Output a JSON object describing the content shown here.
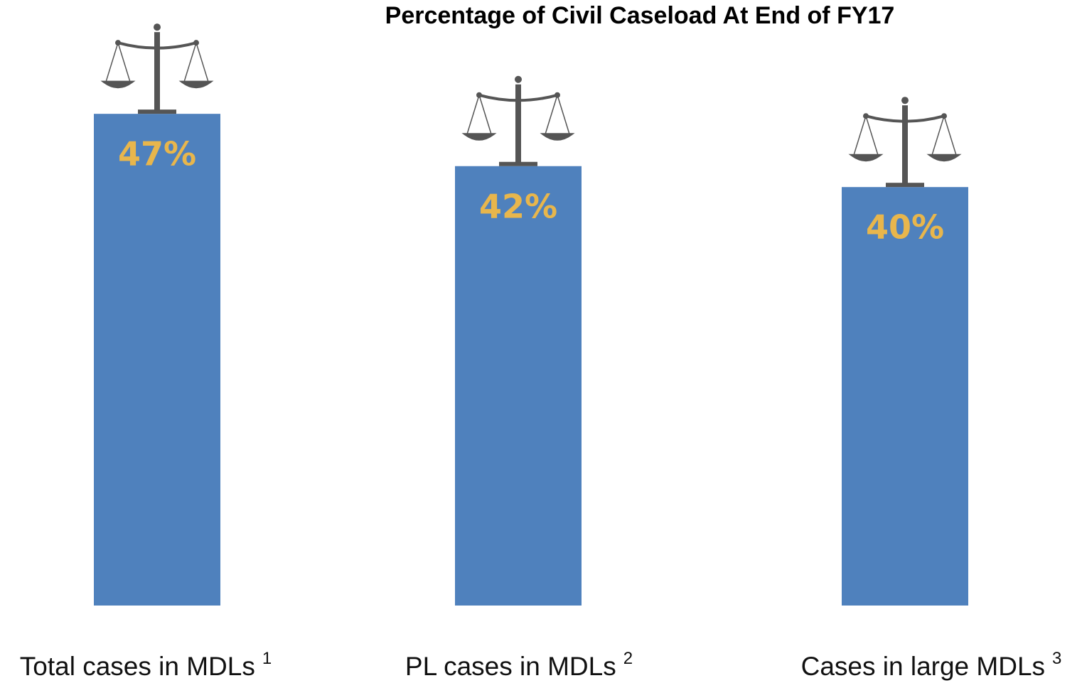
{
  "chart_data": {
    "type": "bar",
    "title": "Percentage of Civil Caseload At End of FY17",
    "categories": [
      "Total cases in MDLs",
      "PL cases in MDLs",
      "Cases in large MDLs"
    ],
    "category_notes": [
      "1",
      "2",
      "3"
    ],
    "values": [
      47,
      42,
      40
    ],
    "value_labels": [
      "47%",
      "42%",
      "40%"
    ],
    "color": "#4f81bd",
    "label_color": "#e8b64c"
  }
}
